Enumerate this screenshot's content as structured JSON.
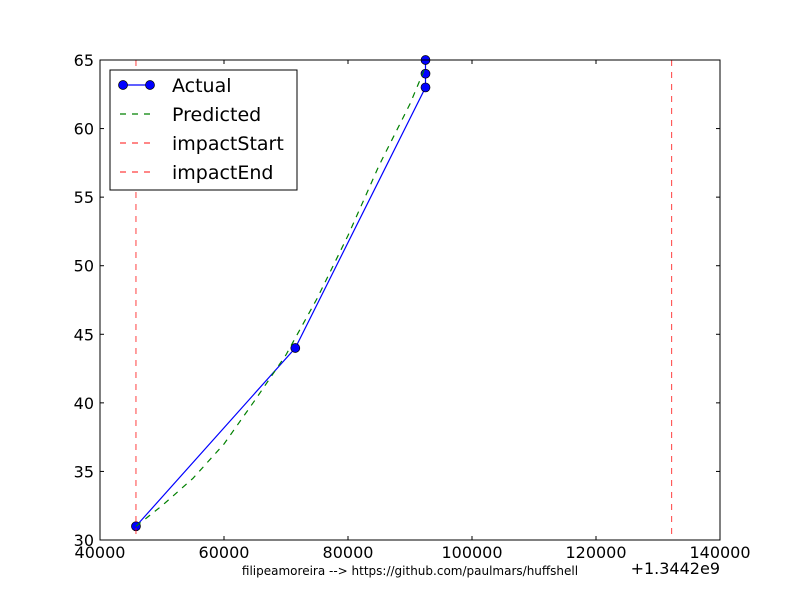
{
  "chart_data": {
    "type": "line",
    "title": "",
    "xlabel": "",
    "ylabel": "",
    "xlim": [
      40000,
      140000
    ],
    "ylim": [
      30,
      65
    ],
    "x_offset_label": "+1.3442e9",
    "xticks": [
      "40000",
      "60000",
      "80000",
      "100000",
      "120000",
      "140000"
    ],
    "yticks": [
      "30",
      "35",
      "40",
      "45",
      "50",
      "55",
      "60",
      "65"
    ],
    "grid": false,
    "legend_position": "top-left",
    "series": [
      {
        "name": "Actual",
        "style": "solid-with-markers",
        "color": "#0000ff",
        "x": [
          45800,
          71500,
          92500,
          92500,
          92500
        ],
        "y": [
          31,
          44,
          63,
          64,
          65
        ]
      },
      {
        "name": "Predicted",
        "style": "dashed",
        "color": "#008000",
        "x": [
          45800,
          50000,
          55000,
          60000,
          65000,
          70000,
          75000,
          80000,
          85000,
          90000,
          92500
        ],
        "y": [
          31,
          32.5,
          34.5,
          37,
          40.2,
          43.5,
          47.6,
          52.2,
          57.3,
          61.8,
          64.5
        ]
      },
      {
        "name": "impactStart",
        "style": "vertical-dashed",
        "color": "#ff0000",
        "x": [
          45800
        ]
      },
      {
        "name": "impactEnd",
        "style": "vertical-dashed",
        "color": "#ff0000",
        "x": [
          132200
        ]
      }
    ]
  },
  "footer": {
    "credit": "filipeamoreira --> https://github.com/paulmars/huffshell"
  }
}
